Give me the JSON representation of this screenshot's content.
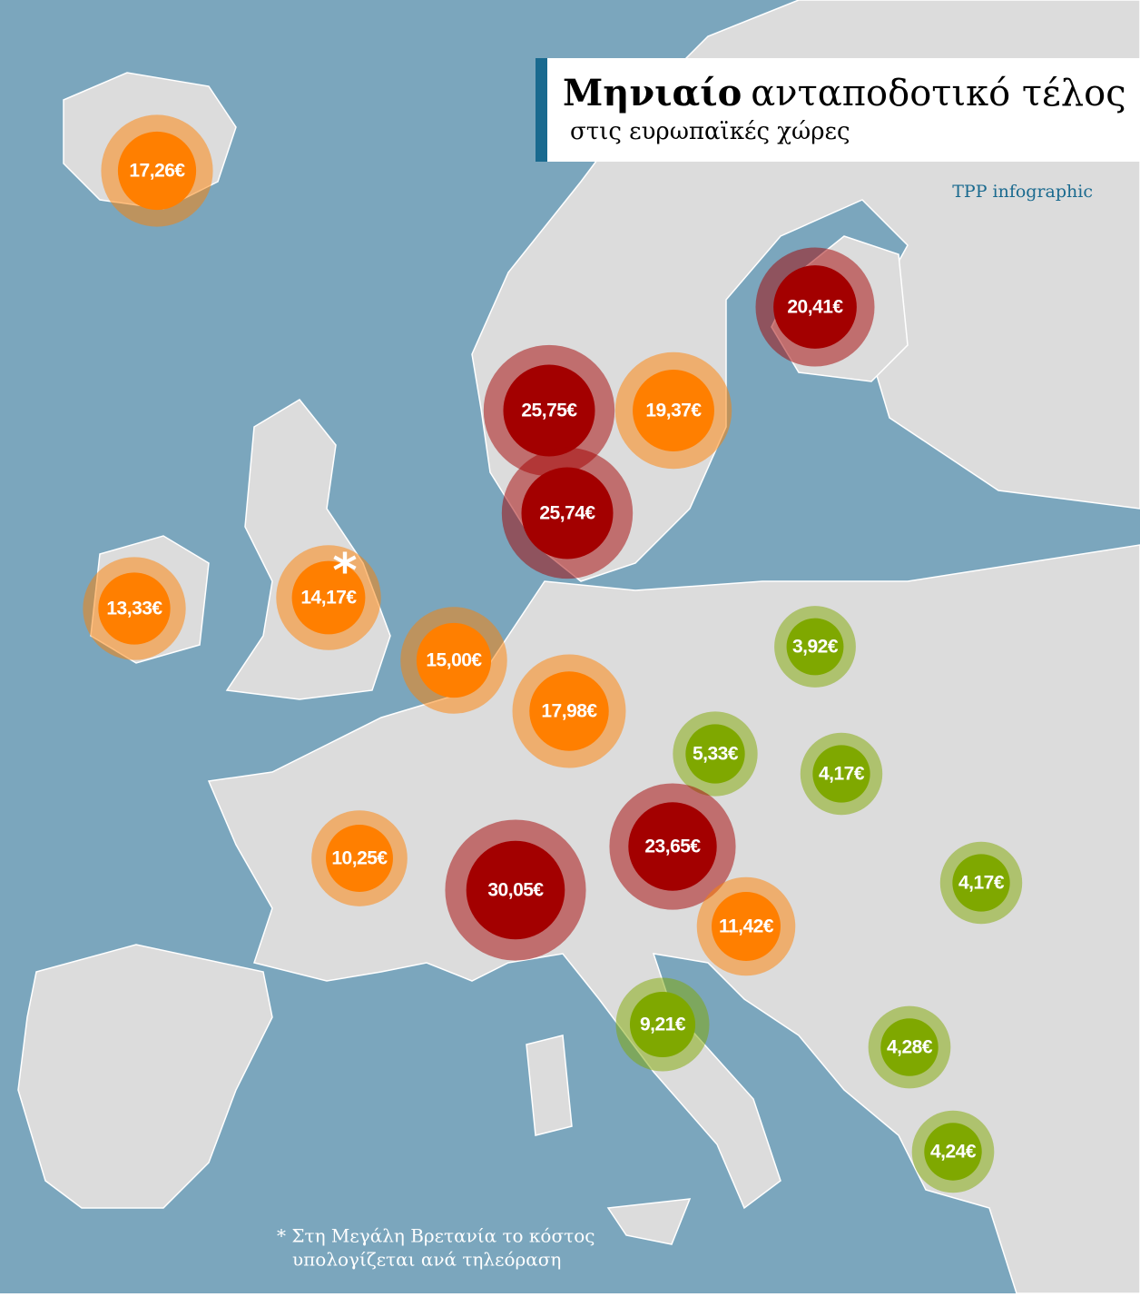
{
  "header": {
    "title_bold": "Μηνιαίο",
    "title_rest": "ανταποδοτικό τέλος",
    "subtitle": "στις ευρωπαϊκές χώρες",
    "credit": "TPP infographic"
  },
  "bubbles": [
    {
      "label": "17,26€",
      "value": 17.26,
      "color": "#ff7f00"
    },
    {
      "label": "20,41€",
      "value": 20.41,
      "color": "#a30000"
    },
    {
      "label": "25,75€",
      "value": 25.75,
      "color": "#a30000"
    },
    {
      "label": "19,37€",
      "value": 19.37,
      "color": "#ff7f00"
    },
    {
      "label": "25,74€",
      "value": 25.74,
      "color": "#a30000"
    },
    {
      "label": "14,17€",
      "value": 14.17,
      "color": "#ff7f00"
    },
    {
      "label": "13,33€",
      "value": 13.33,
      "color": "#ff7f00"
    },
    {
      "label": "15,00€",
      "value": 15.0,
      "color": "#ff7f00"
    },
    {
      "label": "17,98€",
      "value": 17.98,
      "color": "#ff7f00"
    },
    {
      "label": "3,92€",
      "value": 3.92,
      "color": "#7fa800"
    },
    {
      "label": "5,33€",
      "value": 5.33,
      "color": "#7fa800"
    },
    {
      "label": "4,17€",
      "value": 4.17,
      "color": "#7fa800"
    },
    {
      "label": "10,25€",
      "value": 10.25,
      "color": "#ff7f00"
    },
    {
      "label": "30,05€",
      "value": 30.05,
      "color": "#a30000"
    },
    {
      "label": "23,65€",
      "value": 23.65,
      "color": "#a30000"
    },
    {
      "label": "11,42€",
      "value": 11.42,
      "color": "#ff7f00"
    },
    {
      "label": "4,17€",
      "value": 4.17,
      "color": "#7fa800"
    },
    {
      "label": "9,21€",
      "value": 9.21,
      "color": "#7fa800"
    },
    {
      "label": "4,28€",
      "value": 4.28,
      "color": "#7fa800"
    },
    {
      "label": "4,24€",
      "value": 4.24,
      "color": "#7fa800"
    }
  ],
  "footnote_marker": "*",
  "footnote": [
    "* Στη Μεγάλη Βρετανία το κόστος",
    "υπολογίζεται ανά τηλεόραση"
  ]
}
